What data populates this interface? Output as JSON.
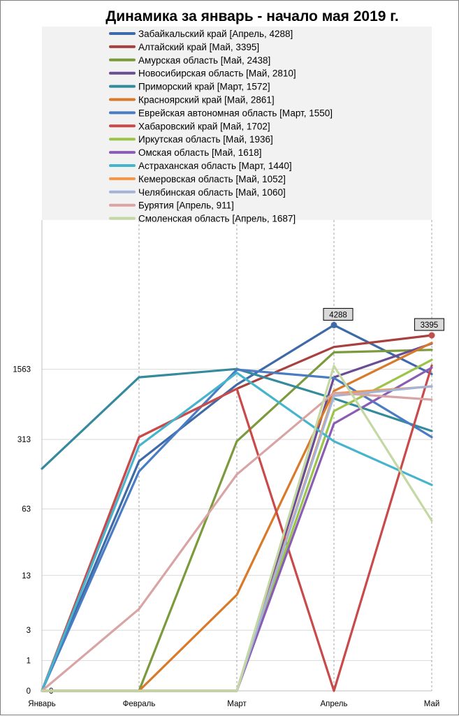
{
  "chart_data": {
    "type": "line",
    "title": "Динамика за январь - начало мая 2019 г.",
    "xlabel": "",
    "ylabel": "",
    "y_scale": "log",
    "categories": [
      "Январь",
      "Февраль",
      "Март",
      "Апрель",
      "Май"
    ],
    "y_ticks": [
      0,
      1,
      3,
      13,
      63,
      313,
      1563
    ],
    "y_tick_labels": [
      "0",
      "1",
      "3",
      "13",
      "63",
      "313",
      "1563"
    ],
    "grid": true,
    "legend_position": "top",
    "series": [
      {
        "name": "Забайкальский край [Апрель, 4288]",
        "color": "#3e6aa8",
        "values": [
          0,
          190,
          1100,
          4288,
          1400
        ]
      },
      {
        "name": "Алтайский край [Май, 3395]",
        "color": "#a8403e",
        "values": [
          0,
          330,
          1000,
          2600,
          3395
        ]
      },
      {
        "name": "Амурская область [Май, 2438]",
        "color": "#7a9a3c",
        "values": [
          0,
          0,
          300,
          2300,
          2438
        ]
      },
      {
        "name": "Новосибирская область [Май, 2810]",
        "color": "#6a4c94",
        "values": [
          0,
          0,
          0,
          1300,
          2810
        ]
      },
      {
        "name": "Приморский край [Март, 1572]",
        "color": "#358a9c",
        "values": [
          160,
          1300,
          1572,
          800,
          380
        ]
      },
      {
        "name": "Красноярский край [Май, 2861]",
        "color": "#d87a2a",
        "values": [
          0,
          0,
          8,
          950,
          2861
        ]
      },
      {
        "name": "Еврейская автономная область [Март, 1550]",
        "color": "#4a7cc4",
        "values": [
          0,
          150,
          1550,
          1280,
          330
        ]
      },
      {
        "name": "Хабаровский край [Май, 1702]",
        "color": "#c84a4a",
        "values": [
          0,
          330,
          1000,
          0,
          1702
        ]
      },
      {
        "name": "Иркутская область [Май, 1936]",
        "color": "#9cc44a",
        "values": [
          0,
          0,
          0,
          600,
          1936
        ]
      },
      {
        "name": "Омская область [Май, 1618]",
        "color": "#8a5cb4",
        "values": [
          0,
          0,
          0,
          450,
          1618
        ]
      },
      {
        "name": "Астраханская область [Март, 1440]",
        "color": "#46b4cc",
        "values": [
          0,
          270,
          1440,
          300,
          110
        ]
      },
      {
        "name": "Кемеровская область [Май, 1052]",
        "color": "#f4964a",
        "values": [
          0,
          0,
          0,
          900,
          1052
        ]
      },
      {
        "name": "Челябинская область [Май, 1060]",
        "color": "#a4b4d8",
        "values": [
          0,
          0,
          0,
          850,
          1060
        ]
      },
      {
        "name": "Бурятия [Апрель, 911]",
        "color": "#d8a4a4",
        "values": [
          0,
          5.5,
          140,
          911,
          780
        ]
      },
      {
        "name": "Смоленская область [Апрель, 1687]",
        "color": "#c4d8a4",
        "values": [
          0,
          0,
          0,
          1687,
          48
        ]
      }
    ],
    "callouts": [
      {
        "label": "4288",
        "category": "Апрель",
        "value": 4288,
        "color": "#3e6aa8"
      },
      {
        "label": "3395",
        "category": "Май",
        "value": 3395,
        "color": "#c0504d"
      }
    ]
  }
}
